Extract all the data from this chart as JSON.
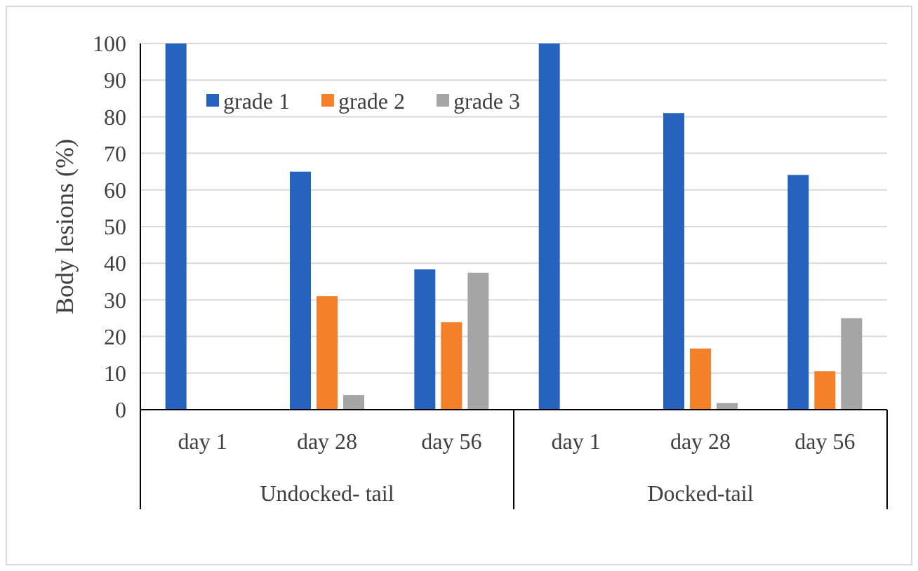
{
  "chart_data": {
    "type": "bar",
    "ylabel": "Body lesions (%)",
    "categories": [
      "day 1",
      "day 28",
      "day 56",
      "day 1",
      "day 28",
      "day 56"
    ],
    "series": [
      {
        "name": "grade 1",
        "color": "#2563be",
        "values": [
          100,
          65,
          38.3,
          100,
          81,
          64.1
        ]
      },
      {
        "name": "grade 2",
        "color": "#f4802a",
        "values": [
          0,
          31,
          23.9,
          0,
          16.7,
          10.5
        ]
      },
      {
        "name": "grade 3",
        "color": "#a5a5a5",
        "values": [
          0,
          4,
          37.4,
          0,
          1.8,
          25
        ]
      }
    ],
    "annotations": [
      "Undocked- tail",
      "Docked-tail"
    ],
    "ylim": [
      0,
      100
    ],
    "yticks": [
      0,
      10,
      20,
      30,
      40,
      50,
      60,
      70,
      80,
      90,
      100
    ],
    "grid": "y",
    "legend": "top left"
  }
}
